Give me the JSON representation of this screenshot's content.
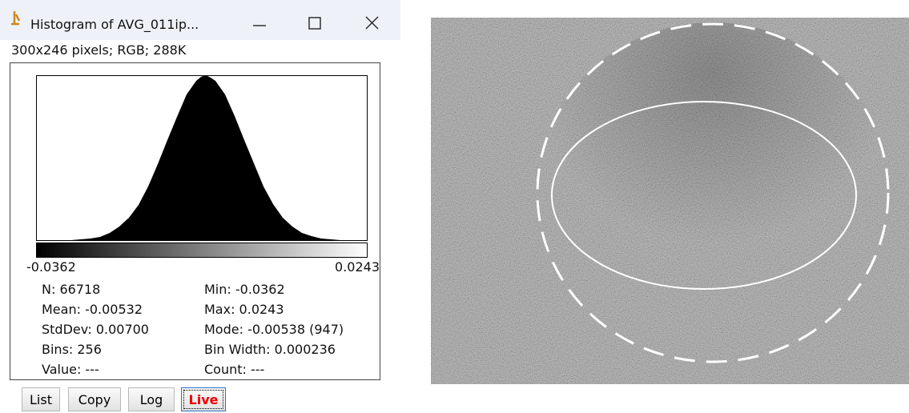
{
  "window": {
    "title": "Histogram of AVG_011ip...",
    "subtitle": "300x246 pixels; RGB; 288K"
  },
  "histogram": {
    "min_label": "-0.0362",
    "max_label": "0.0243"
  },
  "stats": {
    "left": [
      "N: 66718",
      "Mean: -0.00532",
      "StdDev: 0.00700",
      "Bins: 256",
      "Value: ---"
    ],
    "right": [
      "Min: -0.0362",
      "Max: 0.0243",
      "Mode: -0.00538 (947)",
      "Bin Width: 0.000236",
      "Count: ---"
    ]
  },
  "buttons": [
    "List",
    "Copy",
    "Log",
    "Live"
  ]
}
